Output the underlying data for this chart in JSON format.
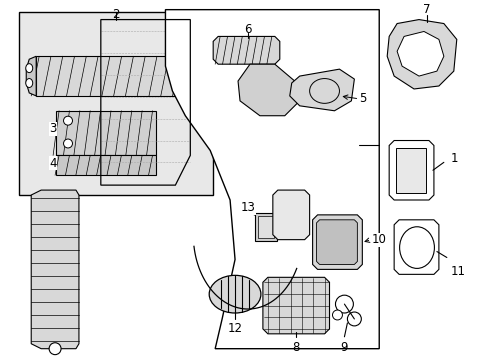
{
  "bg_color": "#ffffff",
  "lc": "#000000",
  "gray_fill": "#e0e0e0",
  "light_fill": "#f0f0f0",
  "inset_fill": "#e8e8e8",
  "figsize": [
    4.89,
    3.6
  ],
  "dpi": 100
}
